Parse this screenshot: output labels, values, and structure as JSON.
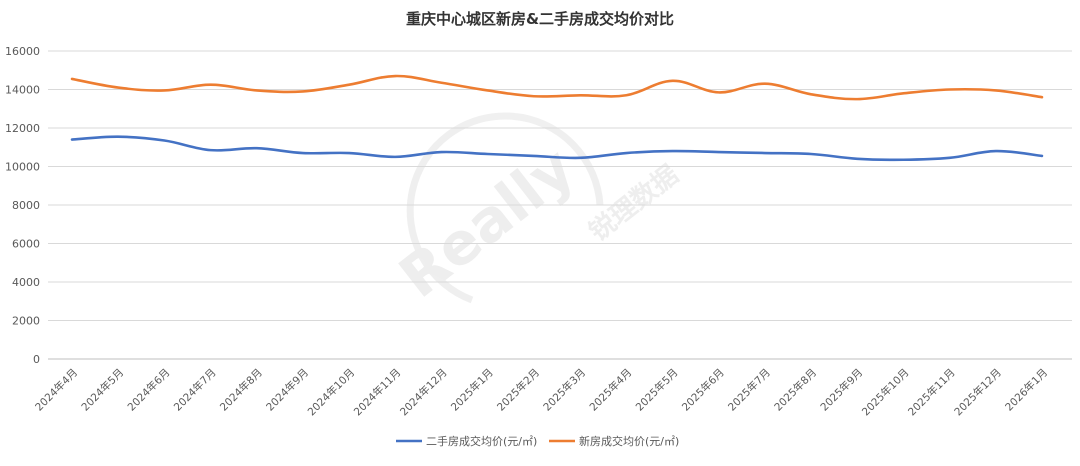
{
  "chart_data": {
    "type": "line",
    "title": "重庆中心城区新房&二手房成交均价对比",
    "xlabel": "",
    "ylabel": "",
    "ylim": [
      0,
      16000
    ],
    "yticks": [
      0,
      2000,
      4000,
      6000,
      8000,
      10000,
      12000,
      14000,
      16000
    ],
    "categories": [
      "2024年4月",
      "2024年5月",
      "2024年6月",
      "2024年7月",
      "2024年8月",
      "2024年9月",
      "2024年10月",
      "2024年11月",
      "2024年12月",
      "2025年1月",
      "2025年2月",
      "2025年3月",
      "2025年4月",
      "2025年5月",
      "2025年6月",
      "2025年7月",
      "2025年8月",
      "2025年9月",
      "2025年10月",
      "2025年11月",
      "2025年12月",
      "2026年1月"
    ],
    "series": [
      {
        "name": "二手房成交均价(元/㎡)",
        "color": "#4472c4",
        "values": [
          11400,
          11550,
          11350,
          10850,
          10950,
          10700,
          10700,
          10500,
          10750,
          10650,
          10550,
          10450,
          10700,
          10800,
          10750,
          10700,
          10650,
          10400,
          10350,
          10450,
          10800,
          10550
        ]
      },
      {
        "name": "新房成交均价(元/㎡)",
        "color": "#ed7d31",
        "values": [
          14550,
          14100,
          13950,
          14250,
          13950,
          13900,
          14250,
          14700,
          14350,
          13950,
          13650,
          13700,
          13700,
          14450,
          13850,
          14300,
          13750,
          13500,
          13800,
          14000,
          13950,
          13600
        ]
      }
    ],
    "grid": true,
    "legend": "bottom"
  },
  "watermark": {
    "text_main": "Really",
    "text_sub": "锐理数据"
  }
}
